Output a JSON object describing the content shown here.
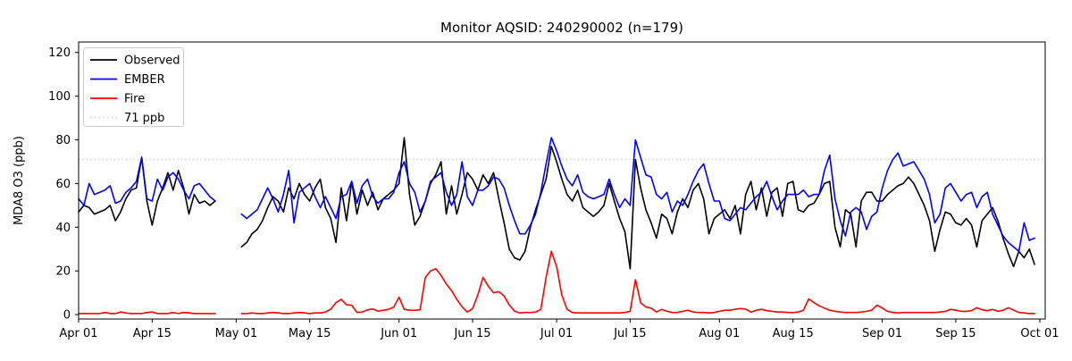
{
  "title": "Monitor AQSID: 240290002 (n=179)",
  "chart_data": {
    "type": "line",
    "title": "Monitor AQSID: 240290002 (n=179)",
    "xlabel": "",
    "ylabel": "MDA8 O3 (ppb)",
    "grid": false,
    "legend_position": "upper left",
    "x_start_label": "Apr 01",
    "x_days_total": 183,
    "x_ticks": [
      {
        "label": "Apr 01",
        "day": 0
      },
      {
        "label": "Apr 15",
        "day": 14
      },
      {
        "label": "May 01",
        "day": 30
      },
      {
        "label": "May 15",
        "day": 44
      },
      {
        "label": "Jun 01",
        "day": 61
      },
      {
        "label": "Jun 15",
        "day": 75
      },
      {
        "label": "Jul 01",
        "day": 91
      },
      {
        "label": "Jul 15",
        "day": 105
      },
      {
        "label": "Aug 01",
        "day": 122
      },
      {
        "label": "Aug 15",
        "day": 136
      },
      {
        "label": "Sep 01",
        "day": 153
      },
      {
        "label": "Sep 15",
        "day": 167
      },
      {
        "label": "Oct 01",
        "day": 183
      }
    ],
    "y_ticks": [
      0,
      20,
      40,
      60,
      80,
      100,
      120
    ],
    "ylim": [
      -2,
      124.8
    ],
    "threshold": {
      "value": 71,
      "label": "71 ppb",
      "color": "#d3d3d3"
    },
    "legend": [
      {
        "label": "Observed"
      },
      {
        "label": "EMBER"
      },
      {
        "label": "Fire"
      },
      {
        "label": "71 ppb"
      }
    ],
    "data_gap_note": "no data Apr 28 - May 01",
    "series": [
      {
        "name": "Observed",
        "color": "#000000",
        "values": [
          47,
          50,
          49,
          46,
          47,
          48,
          50,
          43,
          47,
          53,
          57,
          58,
          72,
          52,
          41,
          52,
          58,
          65,
          57,
          66,
          58,
          46,
          55,
          51,
          52,
          50,
          52,
          null,
          null,
          null,
          null,
          31,
          33,
          37,
          39,
          43,
          49,
          54,
          52,
          47,
          58,
          53,
          60,
          55,
          52,
          58,
          62,
          49,
          44,
          33,
          58,
          43,
          61,
          46,
          57,
          50,
          56,
          48,
          53,
          55,
          57,
          60,
          81,
          55,
          41,
          45,
          52,
          60,
          64,
          70,
          46,
          59,
          46,
          55,
          65,
          62,
          57,
          64,
          60,
          65,
          53,
          42,
          30,
          26,
          25,
          29,
          40,
          48,
          55,
          62,
          77,
          70,
          62,
          55,
          52,
          57,
          49,
          47,
          45,
          47,
          50,
          60,
          52,
          44,
          38,
          21,
          71,
          58,
          48,
          42,
          35,
          46,
          44,
          37,
          47,
          53,
          49,
          57,
          60,
          53,
          37,
          44,
          46,
          48,
          44,
          50,
          37,
          55,
          61,
          48,
          58,
          45,
          56,
          58,
          45,
          60,
          61,
          48,
          47,
          50,
          51,
          55,
          60,
          61,
          40,
          31,
          48,
          46,
          31,
          52,
          56,
          56,
          52,
          52,
          55,
          57,
          59,
          60,
          63,
          60,
          55,
          50,
          43,
          29,
          39,
          47,
          46,
          42,
          41,
          44,
          41,
          31,
          43,
          46,
          49,
          43,
          35,
          28,
          22,
          29,
          26,
          30,
          23
        ]
      },
      {
        "name": "EMBER",
        "color": "#0000ff",
        "values": [
          53,
          50,
          60,
          55,
          56,
          57,
          59,
          51,
          52,
          56,
          58,
          61,
          72,
          53,
          52,
          62,
          57,
          63,
          65,
          62,
          57,
          53,
          59,
          60,
          57,
          54,
          52,
          null,
          null,
          null,
          null,
          46,
          44,
          46,
          48,
          53,
          58,
          53,
          47,
          55,
          66,
          42,
          56,
          58,
          60,
          54,
          49,
          54,
          49,
          44,
          54,
          55,
          61,
          51,
          59,
          62,
          54,
          51,
          53,
          53,
          56,
          65,
          70,
          60,
          56,
          47,
          52,
          61,
          63,
          65,
          56,
          50,
          55,
          70,
          54,
          50,
          57,
          57,
          59,
          63,
          62,
          58,
          50,
          43,
          37,
          37,
          41,
          46,
          56,
          69,
          81,
          75,
          68,
          62,
          59,
          64,
          56,
          54,
          53,
          54,
          55,
          62,
          55,
          49,
          53,
          50,
          80,
          72,
          64,
          63,
          55,
          53,
          56,
          47,
          52,
          50,
          55,
          61,
          66,
          69,
          60,
          52,
          52,
          44,
          43,
          46,
          49,
          48,
          51,
          54,
          56,
          61,
          54,
          48,
          52,
          55,
          55,
          55,
          57,
          54,
          55,
          55,
          66,
          73,
          53,
          43,
          36,
          47,
          49,
          47,
          39,
          45,
          47,
          58,
          66,
          71,
          74,
          68,
          69,
          70,
          66,
          62,
          55,
          42,
          46,
          58,
          60,
          56,
          52,
          55,
          56,
          49,
          54,
          56,
          46,
          41,
          36,
          33,
          31,
          29,
          42,
          34,
          35
        ]
      },
      {
        "name": "Fire",
        "color": "#ff0000",
        "values": [
          0.5,
          0.5,
          0.5,
          0.5,
          0.5,
          1,
          0.5,
          0.5,
          1.2,
          0.8,
          0.5,
          0.5,
          0.5,
          1,
          1.2,
          0.5,
          0.5,
          0.5,
          1,
          0.5,
          1,
          0.8,
          0.5,
          0.5,
          0.5,
          0.5,
          0.5,
          null,
          null,
          null,
          null,
          0.5,
          0.5,
          0.8,
          0.5,
          0.5,
          0.8,
          1,
          0.8,
          0.5,
          0.5,
          0.8,
          1,
          0.8,
          0.5,
          0.8,
          0.8,
          1.2,
          2.5,
          5.5,
          7,
          4.5,
          4.3,
          1,
          1.2,
          2.2,
          2.6,
          1.6,
          2,
          2.4,
          3.5,
          8,
          2.4,
          2,
          2,
          2.2,
          17,
          20,
          21,
          18,
          14,
          11,
          7,
          3.6,
          1.2,
          2.8,
          9,
          17,
          13,
          10,
          10.5,
          8.5,
          4.4,
          1.6,
          0.8,
          1,
          1,
          1.2,
          2.4,
          17,
          29,
          22,
          9,
          2.4,
          1,
          0.8,
          0.8,
          0.8,
          0.8,
          0.8,
          0.8,
          0.8,
          0.8,
          0.8,
          1,
          1.5,
          16,
          5.5,
          3.5,
          3,
          1.2,
          2.4,
          1.5,
          1,
          1,
          1.5,
          2,
          1.2,
          1,
          1,
          0.8,
          1,
          1.5,
          2,
          2,
          2.5,
          2.8,
          2.5,
          1.2,
          2,
          2.4,
          1.8,
          1.5,
          1.2,
          1.2,
          1,
          1,
          1.2,
          2,
          7.2,
          5.5,
          4,
          3,
          2,
          1.5,
          1.2,
          1,
          1,
          1,
          1.2,
          1.5,
          2,
          4.4,
          3,
          1.5,
          1,
          0.8,
          1,
          1,
          1,
          1,
          1,
          1,
          1,
          1.2,
          1.5,
          2.4,
          2,
          1.5,
          1.5,
          1.8,
          3.2,
          2.2,
          1.8,
          2.4,
          1.5,
          2,
          3.2,
          2,
          1,
          0.8,
          0.5,
          0.5
        ]
      }
    ]
  }
}
